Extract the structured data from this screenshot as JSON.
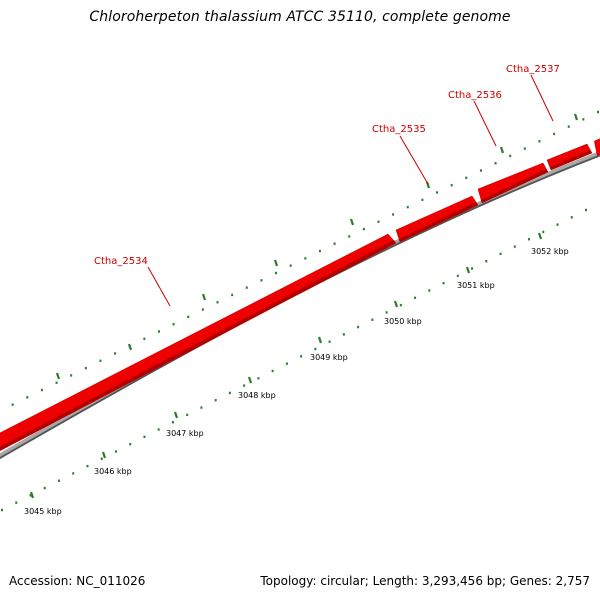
{
  "title": "Chloroherpeton thalassium ATCC 35110, complete genome",
  "footer": {
    "accession": "Accession: NC_011026",
    "stats": "Topology: circular; Length: 3,293,456 bp; Genes: 2,757"
  },
  "colors": {
    "gene": "#ee0000",
    "gene_highlight": "#ff6a6a",
    "gene_shadow": "#b00000",
    "backbone": "#888888",
    "tick": "#2e7d2e",
    "gene_label": "#cc0000"
  },
  "genes": [
    {
      "name": "Ctha_2534"
    },
    {
      "name": "Ctha_2535"
    },
    {
      "name": "Ctha_2536"
    },
    {
      "name": "Ctha_2537"
    }
  ],
  "scale_labels": [
    "3045 kbp",
    "3046 kbp",
    "3047 kbp",
    "3048 kbp",
    "3049 kbp",
    "3050 kbp",
    "3051 kbp",
    "3052 kbp"
  ]
}
